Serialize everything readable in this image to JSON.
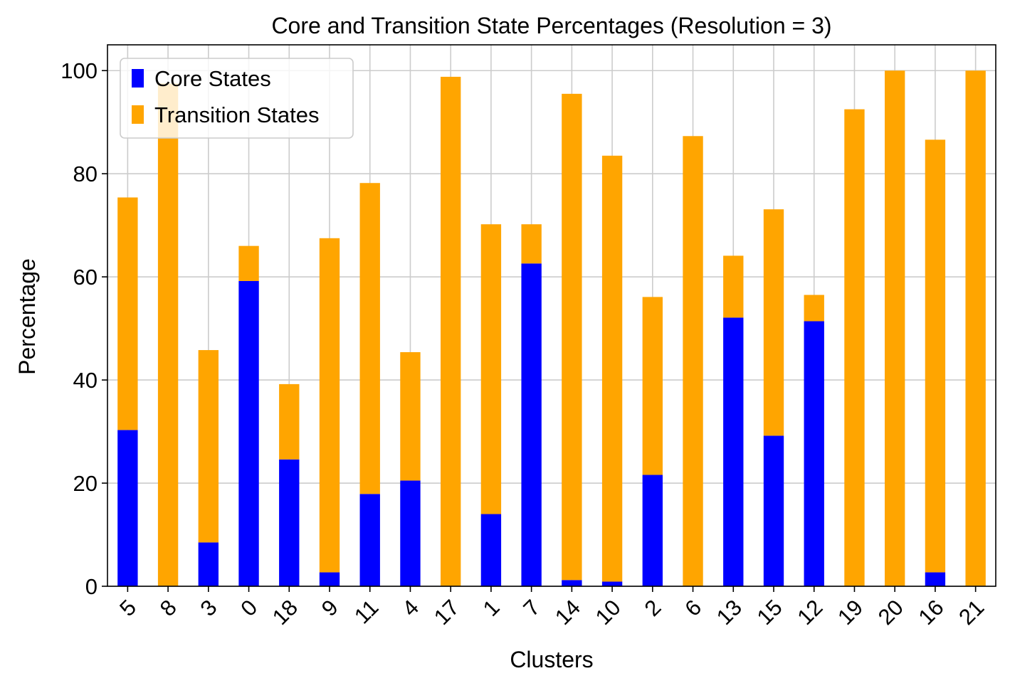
{
  "chart_data": {
    "type": "bar",
    "stacked": true,
    "title": "Core and Transition State Percentages (Resolution = 3)",
    "xlabel": "Clusters",
    "ylabel": "Percentage",
    "ylim": [
      0,
      105
    ],
    "yticks": [
      0,
      20,
      40,
      60,
      80,
      100
    ],
    "grid": true,
    "legend_position": "upper-left",
    "categories": [
      "5",
      "8",
      "3",
      "0",
      "18",
      "9",
      "11",
      "4",
      "17",
      "1",
      "7",
      "14",
      "10",
      "2",
      "6",
      "13",
      "15",
      "12",
      "19",
      "20",
      "16",
      "21"
    ],
    "series": [
      {
        "name": "Core States",
        "color": "#0000ff",
        "values": [
          30.3,
          0,
          8.5,
          59.2,
          24.6,
          2.7,
          17.9,
          20.5,
          0,
          14.0,
          62.6,
          1.2,
          0.9,
          21.6,
          0,
          52.1,
          29.2,
          51.4,
          0,
          0,
          2.7,
          0
        ]
      },
      {
        "name": "Transition States",
        "color": "#ffa500",
        "values": [
          45.1,
          97.5,
          37.3,
          6.8,
          14.6,
          64.8,
          60.3,
          24.9,
          98.8,
          56.2,
          7.6,
          94.3,
          82.6,
          34.5,
          87.3,
          12.0,
          43.9,
          5.1,
          92.5,
          100.0,
          83.9,
          100.0
        ]
      }
    ]
  }
}
